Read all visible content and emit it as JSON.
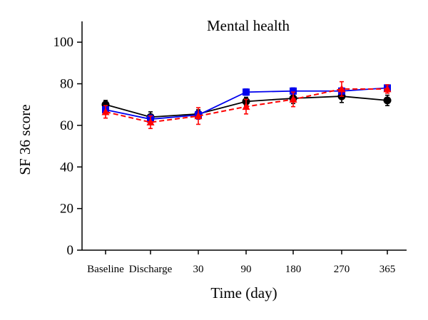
{
  "chart_data": {
    "type": "line",
    "title": "Mental health",
    "xlabel": "Time (day)",
    "ylabel": "SF 36 score",
    "categories": [
      "Baseline",
      "Discharge",
      "30",
      "90",
      "180",
      "270",
      "365"
    ],
    "yticks": [
      0,
      20,
      40,
      60,
      80,
      100
    ],
    "ylim": [
      0,
      110
    ],
    "grid": false,
    "legend": "none",
    "series": [
      {
        "values": [
          70,
          64,
          65.5,
          71.5,
          73,
          74,
          72
        ],
        "errors": [
          2,
          2.5,
          2,
          2,
          2.5,
          3,
          2.5
        ],
        "color": "#000000",
        "marker": "circle",
        "dash": "solid"
      },
      {
        "values": [
          67.5,
          63,
          65,
          76,
          76.5,
          76.5,
          78
        ],
        "errors": [
          2,
          2,
          2,
          1.5,
          1.5,
          1.5,
          1.5
        ],
        "color": "#0000ee",
        "marker": "square",
        "dash": "solid"
      },
      {
        "values": [
          66.5,
          61.5,
          64.5,
          69,
          72.5,
          77.5,
          77.5
        ],
        "errors": [
          3,
          3,
          4,
          3.5,
          3.5,
          3.5,
          2
        ],
        "color": "#ff0000",
        "marker": "triangle",
        "dash": "dashed"
      }
    ]
  }
}
